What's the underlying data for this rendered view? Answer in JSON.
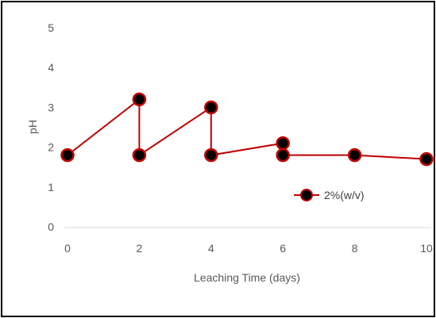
{
  "chart_data": {
    "type": "line",
    "title": "",
    "xlabel": "Leaching Time (days)",
    "ylabel": "pH",
    "xlim": [
      0,
      10
    ],
    "ylim": [
      0,
      5
    ],
    "xticks": [
      "0",
      "2",
      "4",
      "6",
      "8",
      "10"
    ],
    "yticks": [
      "0",
      "1",
      "2",
      "3",
      "4",
      "5"
    ],
    "grid": false,
    "legend_position": "inside-right",
    "series": [
      {
        "name": "2%(w/v)",
        "line_color": "#c00000",
        "marker_fill": "#000000",
        "marker_edge": "#c00000",
        "points": [
          {
            "x": 0,
            "y": 1.8
          },
          {
            "x": 2,
            "y": 3.2
          },
          {
            "x": 2,
            "y": 1.8
          },
          {
            "x": 4,
            "y": 3.0
          },
          {
            "x": 4,
            "y": 1.8
          },
          {
            "x": 6,
            "y": 2.1
          },
          {
            "x": 6,
            "y": 1.8
          },
          {
            "x": 8,
            "y": 1.8
          },
          {
            "x": 10,
            "y": 1.7
          }
        ]
      }
    ]
  }
}
